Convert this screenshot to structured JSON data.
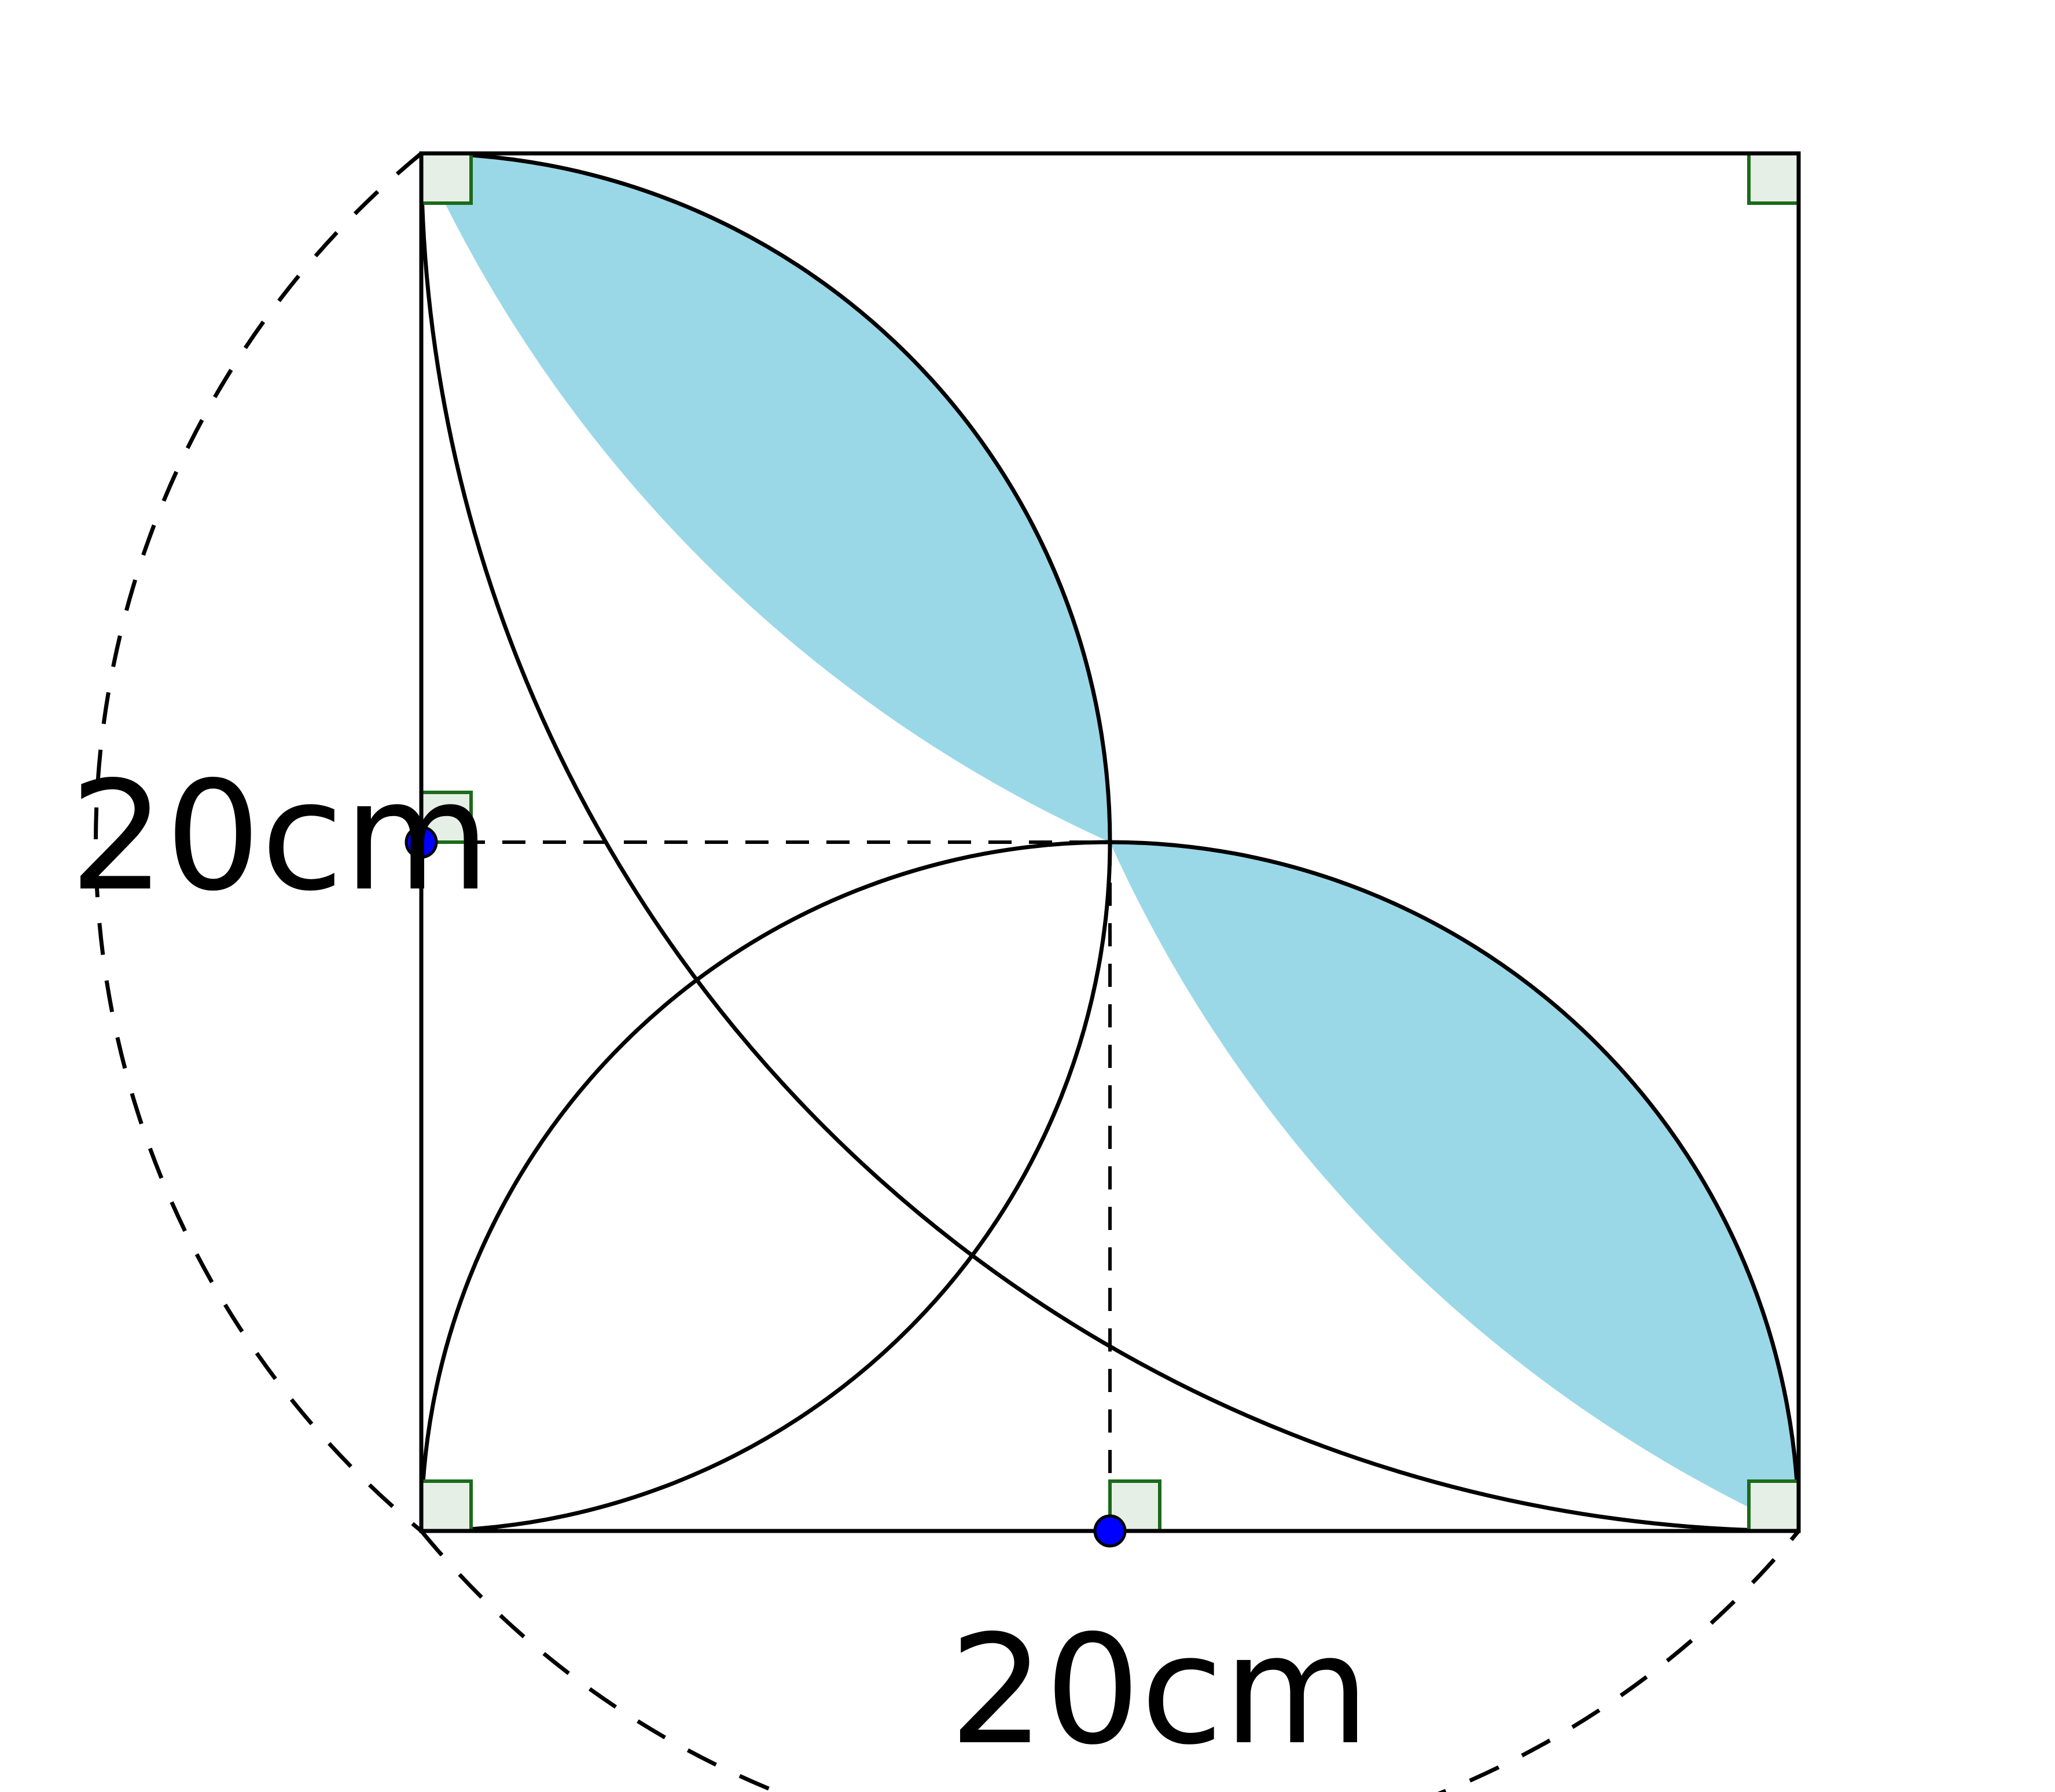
{
  "labels": {
    "left_side": "20cm",
    "bottom_side": "20cm"
  },
  "colors": {
    "shaded_region": "#9ad8e8",
    "outline": "#000000",
    "right_angle_marker_fill": "#e6efe6",
    "right_angle_marker_stroke": "#1a6b1a",
    "point": "#0000ff"
  }
}
